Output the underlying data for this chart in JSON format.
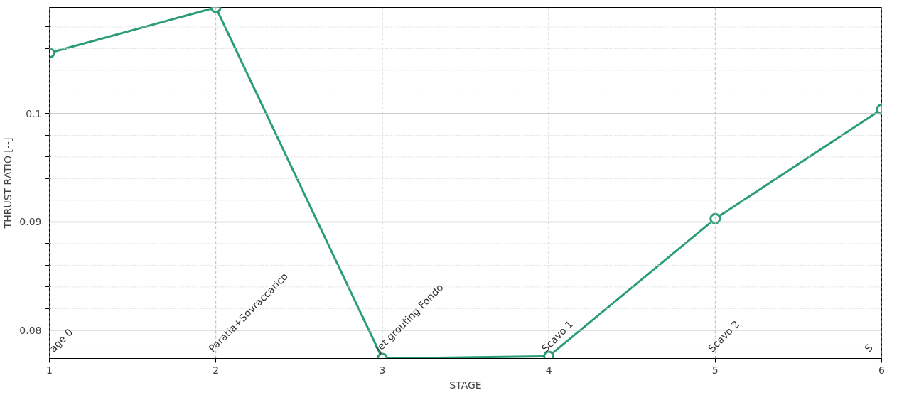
{
  "chart_data": {
    "type": "line",
    "xlabel": "STAGE",
    "ylabel": "THRUST RATIO [--]",
    "x": [
      1,
      2,
      3,
      4,
      5,
      6
    ],
    "series": [
      {
        "color": "#2a9d78",
        "values": [
          0.1056,
          0.1098,
          0.0774,
          0.0776,
          0.0903,
          0.1004
        ]
      }
    ],
    "xlim": [
      1,
      6
    ],
    "xticks": [
      1,
      2,
      3,
      4,
      5,
      6
    ],
    "ylim": [
      0.0774,
      0.1098
    ],
    "yticks": [
      {
        "value": 0.078,
        "label": null
      },
      0.08,
      {
        "value": 0.082,
        "label": null
      },
      {
        "value": 0.084,
        "label": null
      },
      {
        "value": 0.086,
        "label": null
      },
      {
        "value": 0.088,
        "label": null
      },
      0.09,
      {
        "value": 0.092,
        "label": null
      },
      {
        "value": 0.094,
        "label": null
      },
      {
        "value": 0.096,
        "label": null
      },
      {
        "value": 0.098,
        "label": null
      },
      0.1,
      {
        "value": 0.102,
        "label": null
      },
      {
        "value": 0.104,
        "label": null
      },
      {
        "value": 0.106,
        "label": null
      },
      {
        "value": 0.108,
        "label": null
      }
    ],
    "annotations": [
      "age 0",
      "Paratia+Sovraccarico",
      "Jet grouting Fondo",
      "Scavo 1",
      "Scavo 2",
      "S"
    ],
    "grid": true,
    "marker": "circle",
    "line_style": "solid"
  }
}
